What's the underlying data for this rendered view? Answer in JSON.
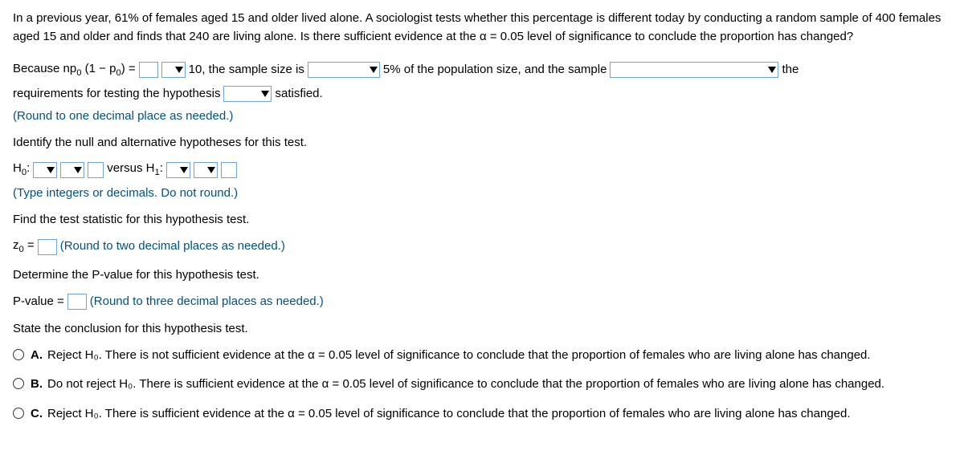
{
  "problem": "In a previous year, 61% of females aged 15 and older lived alone. A sociologist tests whether this percentage is different today by conducting a random sample of 400 females aged 15 and older and finds that 240 are living alone. Is there sufficient evidence at the α = 0.05 level of significance to conclude the proportion has changed?",
  "line1": {
    "pre": "Because np",
    "sub1": "0",
    "mid1": "(1 − p",
    "sub2": "0",
    "mid2": ") =",
    "after_eq": " 10, the sample size is",
    "after_dd2": "5% of the population size, and the sample",
    "tail": "the"
  },
  "line2": {
    "pre": "requirements for testing the hypothesis",
    "post": "satisfied."
  },
  "instr1": "(Round to one decimal place as needed.)",
  "identify": "Identify the null and alternative hypotheses for this test.",
  "hyp": {
    "h0": "H",
    "h0sub": "0",
    "colon": ":",
    "versus": "versus H",
    "h1sub": "1",
    "colon2": ":"
  },
  "instr2": "(Type integers or decimals. Do not round.)",
  "find_stat": "Find the test statistic for this hypothesis test.",
  "z0": {
    "z": "z",
    "sub": "0",
    "eq": " ="
  },
  "instr3": "(Round to two decimal places as needed.)",
  "find_p": "Determine the P-value for this hypothesis test.",
  "pval_label": "P-value =",
  "instr4": "(Round to three decimal places as needed.)",
  "state": "State the conclusion for this hypothesis test.",
  "options": {
    "A": {
      "letter": "A.",
      "text": "Reject H₀. There is not sufficient evidence at the α = 0.05 level of significance to conclude that the proportion of females who are living alone has changed."
    },
    "B": {
      "letter": "B.",
      "text": "Do not reject H₀. There is sufficient evidence at the α = 0.05 level of significance to conclude that the proportion of females who are living alone has changed."
    },
    "C": {
      "letter": "C.",
      "text": "Reject H₀. There is sufficient evidence at the α = 0.05 level of significance to conclude that the proportion of females who are living alone has changed."
    }
  }
}
